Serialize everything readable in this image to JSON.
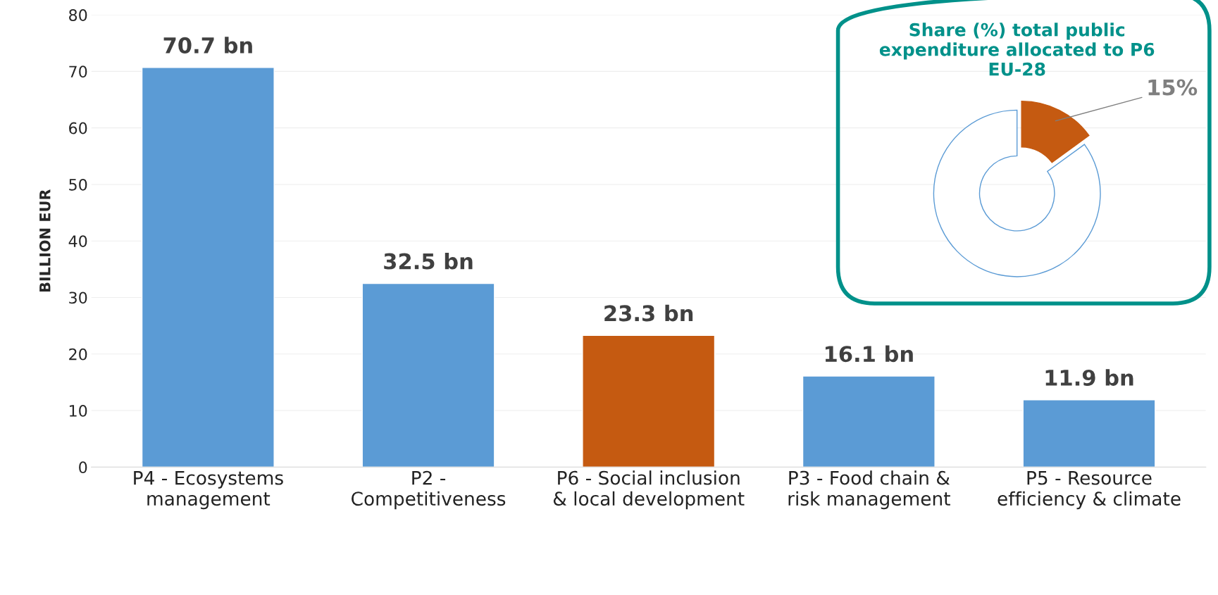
{
  "chart_data": [
    {
      "type": "bar",
      "ylabel": "BILLION EUR",
      "categories": [
        "P4 - Ecosystems\nmanagement",
        "P2 -\nCompetitiveness",
        "P6 - Social inclusion\n& local development",
        "P3 - Food chain &\nrisk management",
        "P5 - Resource\nefficiency & climate"
      ],
      "values": [
        70.7,
        32.5,
        23.3,
        16.1,
        11.9
      ],
      "colors": [
        "#5b9bd5",
        "#5b9bd5",
        "#c55a11",
        "#5b9bd5",
        "#5b9bd5"
      ],
      "value_labels": [
        "70.7 bn",
        "32.5 bn",
        "23.3 bn",
        "16.1 bn",
        "11.9 bn"
      ],
      "ylim": [
        0,
        80
      ],
      "yticks": [
        0,
        10,
        20,
        30,
        40,
        50,
        60,
        70,
        80
      ],
      "grid": "y"
    },
    {
      "type": "donut",
      "title": "Share (%) total public\nexpenditure allocated to P6\nEU-28",
      "categories": [
        null,
        null
      ],
      "values": [
        15,
        85
      ],
      "colors": [
        "#c55a11",
        "#ffffff"
      ],
      "value_labels": [
        "15%",
        null
      ]
    }
  ]
}
